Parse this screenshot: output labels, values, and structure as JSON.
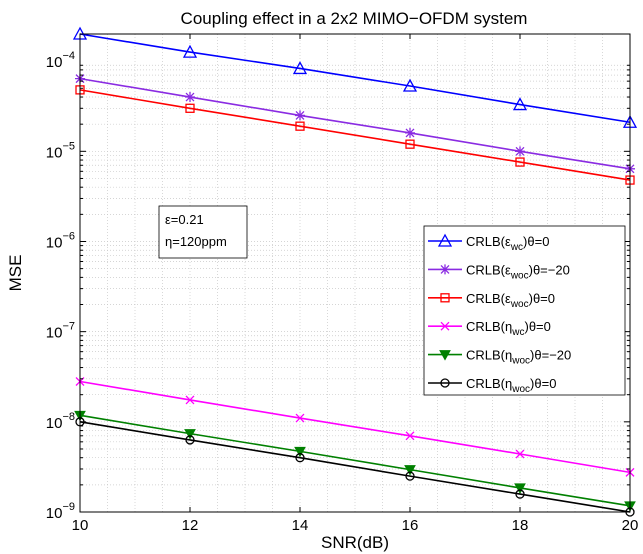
{
  "chart_data": {
    "type": "line",
    "title": "Coupling effect in a 2x2 MIMO−OFDM system",
    "xlabel": "SNR(dB)",
    "ylabel": "MSE",
    "xlim": [
      10,
      20
    ],
    "ylim": [
      1e-09,
      0.0002
    ],
    "y_scale": "log",
    "grid": true,
    "x_ticks": [
      "10",
      "12",
      "14",
      "16",
      "18",
      "20"
    ],
    "y_tick_labels": [
      {
        "base": "10",
        "exp": "−9",
        "value": 1e-09
      },
      {
        "base": "10",
        "exp": "−8",
        "value": 1e-08
      },
      {
        "base": "10",
        "exp": "−7",
        "value": 1e-07
      },
      {
        "base": "10",
        "exp": "−6",
        "value": 1e-06
      },
      {
        "base": "10",
        "exp": "−5",
        "value": 1e-05
      },
      {
        "base": "10",
        "exp": "−4",
        "value": 0.0001
      }
    ],
    "legend_position": "right",
    "x": [
      10,
      12,
      14,
      16,
      18,
      20
    ],
    "series": [
      {
        "name": "CRLB(ε_wc)θ=0",
        "label_main": "CRLB(ε",
        "label_sub": "wc",
        "label_rest": ")θ=0",
        "color": "#0000ff",
        "marker": "triangle",
        "values": [
          0.0002,
          0.000126,
          8.3e-05,
          5.3e-05,
          3.3e-05,
          2.1e-05
        ]
      },
      {
        "name": "CRLB(ε_woc)θ=−20",
        "label_main": "CRLB(ε",
        "label_sub": "woc",
        "label_rest": ")θ=−20",
        "color": "#8a2be2",
        "marker": "star",
        "values": [
          6.4e-05,
          4e-05,
          2.5e-05,
          1.6e-05,
          1e-05,
          6.4e-06
        ]
      },
      {
        "name": "CRLB(ε_woc)θ=0",
        "label_main": "CRLB(ε",
        "label_sub": "woc",
        "label_rest": ")θ=0",
        "color": "#ff0000",
        "marker": "square",
        "values": [
          4.8e-05,
          3e-05,
          1.9e-05,
          1.2e-05,
          7.6e-06,
          4.8e-06
        ]
      },
      {
        "name": "CRLB(η_wc)θ=0",
        "label_main": "CRLB(η",
        "label_sub": "wc",
        "label_rest": ")θ=0",
        "color": "#ff00ff",
        "marker": "x",
        "values": [
          2.8e-08,
          1.75e-08,
          1.1e-08,
          7e-09,
          4.4e-09,
          2.75e-09
        ]
      },
      {
        "name": "CRLB(η_woc)θ=−20",
        "label_main": "CRLB(η",
        "label_sub": "woc",
        "label_rest": ")θ=−20",
        "color": "#008000",
        "marker": "triangle-down",
        "values": [
          1.18e-08,
          7.4e-09,
          4.7e-09,
          2.95e-09,
          1.85e-09,
          1.17e-09
        ]
      },
      {
        "name": "CRLB(η_woc)θ=0",
        "label_main": "CRLB(η",
        "label_sub": "woc",
        "label_rest": ")θ=0",
        "color": "#000000",
        "marker": "circle",
        "values": [
          1e-08,
          6.3e-09,
          4e-09,
          2.5e-09,
          1.58e-09,
          1e-09
        ]
      }
    ],
    "annotation": {
      "lines": [
        "ε=0.21",
        "η=120ppm"
      ]
    }
  }
}
